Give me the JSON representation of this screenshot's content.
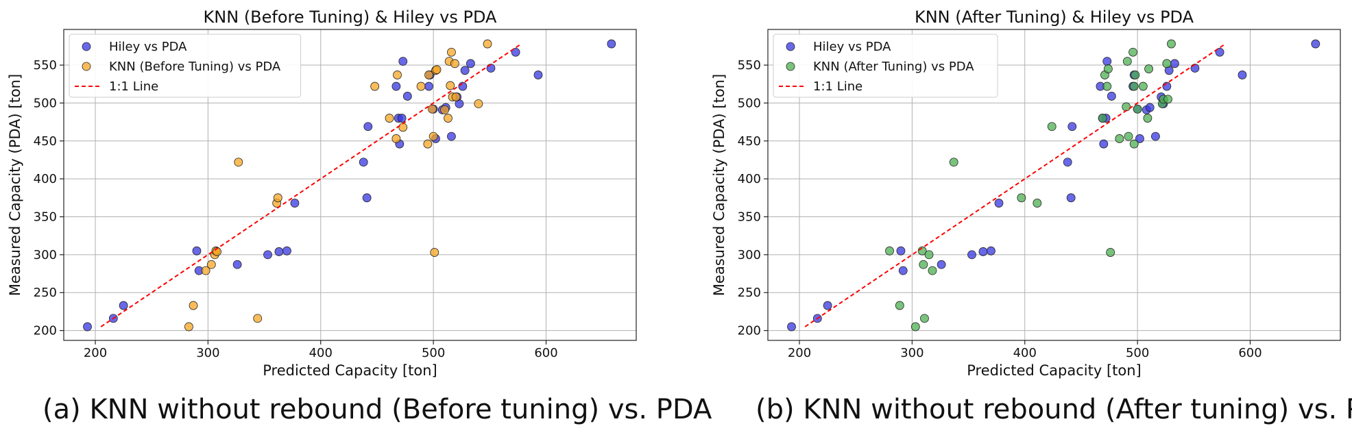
{
  "chart_data": [
    {
      "type": "scatter",
      "title": "KNN (Before Tuning) & Hiley vs PDA",
      "xlabel": "Predicted Capacity [ton]",
      "ylabel": "Measured Capacity (PDA) [ton]",
      "xlim": [
        172,
        680
      ],
      "ylim": [
        187,
        597
      ],
      "xticks": [
        200,
        300,
        400,
        500,
        600
      ],
      "yticks": [
        200,
        250,
        300,
        350,
        400,
        450,
        500,
        550
      ],
      "grid": true,
      "legend_position": "top-left",
      "caption": "(a) KNN without rebound (Before tuning) vs. PDA",
      "reference_line": {
        "name": "1:1 Line",
        "x": [
          205,
          578
        ],
        "y": [
          205,
          578
        ],
        "color": "#ff0000"
      },
      "series": [
        {
          "name": "Hiley vs PDA",
          "color": "#3535e0",
          "points": [
            [
              193,
              205
            ],
            [
              216,
              216
            ],
            [
              225,
              233
            ],
            [
              290,
              305
            ],
            [
              292,
              279
            ],
            [
              326,
              287
            ],
            [
              353,
              300
            ],
            [
              363,
              304
            ],
            [
              370,
              305
            ],
            [
              377,
              368
            ],
            [
              438,
              422
            ],
            [
              442,
              469
            ],
            [
              441,
              375
            ],
            [
              467,
              522
            ],
            [
              469,
              480
            ],
            [
              470,
              446
            ],
            [
              472,
              480
            ],
            [
              473,
              555
            ],
            [
              477,
              509
            ],
            [
              496,
              522
            ],
            [
              497,
              537
            ],
            [
              500,
              492
            ],
            [
              502,
              453
            ],
            [
              508,
              491
            ],
            [
              511,
              494
            ],
            [
              516,
              456
            ],
            [
              521,
              508
            ],
            [
              523,
              499
            ],
            [
              526,
              522
            ],
            [
              528,
              543
            ],
            [
              533,
              552
            ],
            [
              551,
              546
            ],
            [
              573,
              567
            ],
            [
              593,
              537
            ],
            [
              658,
              578
            ]
          ]
        },
        {
          "name": "KNN (Before Tuning) vs PDA",
          "color": "#f5a623",
          "points": [
            [
              283,
              205
            ],
            [
              287,
              233
            ],
            [
              298,
              279
            ],
            [
              303,
              287
            ],
            [
              306,
              300
            ],
            [
              307,
              305
            ],
            [
              308,
              304
            ],
            [
              327,
              422
            ],
            [
              344,
              216
            ],
            [
              361,
              368
            ],
            [
              362,
              375
            ],
            [
              448,
              522
            ],
            [
              461,
              480
            ],
            [
              467,
              453
            ],
            [
              468,
              537
            ],
            [
              473,
              468
            ],
            [
              489,
              522
            ],
            [
              495,
              446
            ],
            [
              496,
              537
            ],
            [
              499,
              492
            ],
            [
              500,
              456
            ],
            [
              501,
              303
            ],
            [
              502,
              543
            ],
            [
              503,
              544
            ],
            [
              510,
              491
            ],
            [
              513,
              480
            ],
            [
              514,
              555
            ],
            [
              515,
              523
            ],
            [
              516,
              567
            ],
            [
              517,
              508
            ],
            [
              519,
              552
            ],
            [
              520,
              508
            ],
            [
              540,
              499
            ],
            [
              548,
              578
            ]
          ]
        }
      ]
    },
    {
      "type": "scatter",
      "title": "KNN (After Tuning) & Hiley vs PDA",
      "xlabel": "Predicted Capacity [ton]",
      "ylabel": "Measured Capacity (PDA) [ton]",
      "xlim": [
        172,
        680
      ],
      "ylim": [
        187,
        597
      ],
      "xticks": [
        200,
        300,
        400,
        500,
        600
      ],
      "yticks": [
        200,
        250,
        300,
        350,
        400,
        450,
        500,
        550
      ],
      "grid": true,
      "legend_position": "top-left",
      "caption": "(b) KNN without rebound (After tuning) vs. PDA",
      "reference_line": {
        "name": "1:1 Line",
        "x": [
          205,
          578
        ],
        "y": [
          205,
          578
        ],
        "color": "#ff0000"
      },
      "series": [
        {
          "name": "Hiley vs PDA",
          "color": "#3535e0",
          "points": [
            [
              193,
              205
            ],
            [
              216,
              216
            ],
            [
              225,
              233
            ],
            [
              290,
              305
            ],
            [
              292,
              279
            ],
            [
              326,
              287
            ],
            [
              353,
              300
            ],
            [
              363,
              304
            ],
            [
              370,
              305
            ],
            [
              377,
              368
            ],
            [
              438,
              422
            ],
            [
              442,
              469
            ],
            [
              441,
              375
            ],
            [
              467,
              522
            ],
            [
              469,
              480
            ],
            [
              470,
              446
            ],
            [
              472,
              480
            ],
            [
              473,
              555
            ],
            [
              477,
              509
            ],
            [
              496,
              522
            ],
            [
              497,
              537
            ],
            [
              500,
              492
            ],
            [
              502,
              453
            ],
            [
              508,
              491
            ],
            [
              511,
              494
            ],
            [
              516,
              456
            ],
            [
              521,
              508
            ],
            [
              523,
              499
            ],
            [
              526,
              522
            ],
            [
              528,
              543
            ],
            [
              533,
              552
            ],
            [
              551,
              546
            ],
            [
              573,
              567
            ],
            [
              593,
              537
            ],
            [
              658,
              578
            ]
          ]
        },
        {
          "name": "KNN (After Tuning) vs PDA",
          "color": "#4caf50",
          "points": [
            [
              280,
              305
            ],
            [
              289,
              233
            ],
            [
              303,
              205
            ],
            [
              309,
              305
            ],
            [
              310,
              287
            ],
            [
              311,
              216
            ],
            [
              315,
              300
            ],
            [
              318,
              279
            ],
            [
              337,
              422
            ],
            [
              397,
              375
            ],
            [
              411,
              368
            ],
            [
              424,
              469
            ],
            [
              469,
              480
            ],
            [
              471,
              537
            ],
            [
              473,
              522
            ],
            [
              474,
              545
            ],
            [
              476,
              303
            ],
            [
              484,
              453
            ],
            [
              490,
              495
            ],
            [
              491,
              555
            ],
            [
              492,
              456
            ],
            [
              496,
              567
            ],
            [
              497,
              446
            ],
            [
              497,
              522
            ],
            [
              498,
              537
            ],
            [
              500,
              492
            ],
            [
              505,
              522
            ],
            [
              509,
              480
            ],
            [
              510,
              545
            ],
            [
              522,
              499
            ],
            [
              523,
              505
            ],
            [
              526,
              552
            ],
            [
              527,
              505
            ],
            [
              530,
              578
            ]
          ]
        }
      ]
    }
  ]
}
